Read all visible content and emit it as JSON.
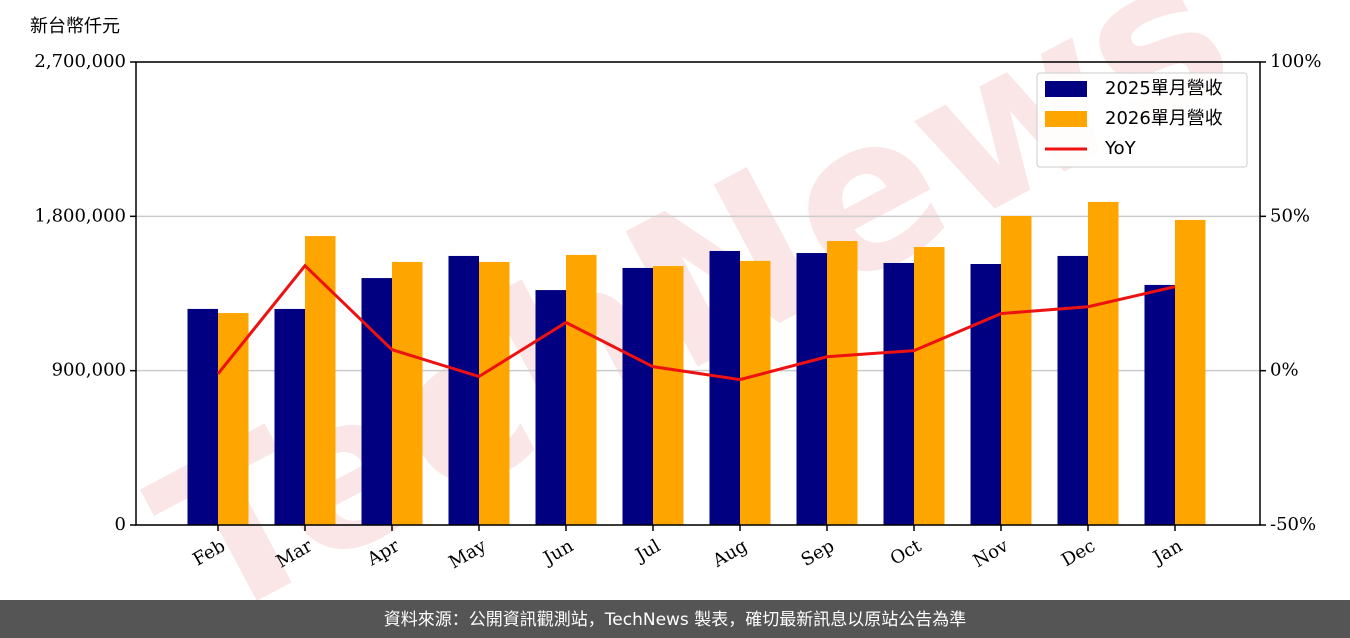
{
  "chart_data": {
    "type": "bar",
    "unit_label": "新台幣仟元",
    "watermark": "TechNews",
    "source": "資料來源：公開資訊觀測站，TechNews 製表，確切最新訊息以原站公告為準",
    "categories": [
      "Feb",
      "Mar",
      "Apr",
      "May",
      "Jun",
      "Jul",
      "Aug",
      "Sep",
      "Oct",
      "Nov",
      "Dec",
      "Jan"
    ],
    "series": [
      {
        "name": "2025單月營收",
        "color": "#000080",
        "type": "bar",
        "values": [
          1260000,
          1260000,
          1440000,
          1569000,
          1370000,
          1499000,
          1598000,
          1586000,
          1528000,
          1522000,
          1569000,
          1400000
        ]
      },
      {
        "name": "2026單月營收",
        "color": "#ffa500",
        "type": "bar",
        "values": [
          1236000,
          1685000,
          1534000,
          1534000,
          1575000,
          1510000,
          1540000,
          1656000,
          1621000,
          1802000,
          1884000,
          1779000
        ]
      },
      {
        "name": "YoY",
        "color": "#ee1111",
        "type": "line",
        "axis": "y2",
        "values": [
          -1.0,
          34.0,
          6.8,
          -1.9,
          15.6,
          1.3,
          -2.9,
          4.5,
          6.5,
          18.5,
          20.7,
          27.2
        ]
      }
    ],
    "ylim": [
      0,
      2700000
    ],
    "yticks": [
      0,
      {
        "value": 900000,
        "label": "900,000"
      },
      {
        "value": 1800000,
        "label": "1,800,000"
      },
      {
        "value": 2700000,
        "label": "2,700,000"
      }
    ],
    "y2lim": [
      -50,
      100
    ],
    "y2ticks": [
      {
        "value": -50,
        "label": "-50%"
      },
      {
        "value": 0,
        "label": "0%"
      },
      {
        "value": 50,
        "label": "50%"
      },
      {
        "value": 100,
        "label": "100%"
      }
    ],
    "grid": true,
    "legend": "upper right"
  }
}
